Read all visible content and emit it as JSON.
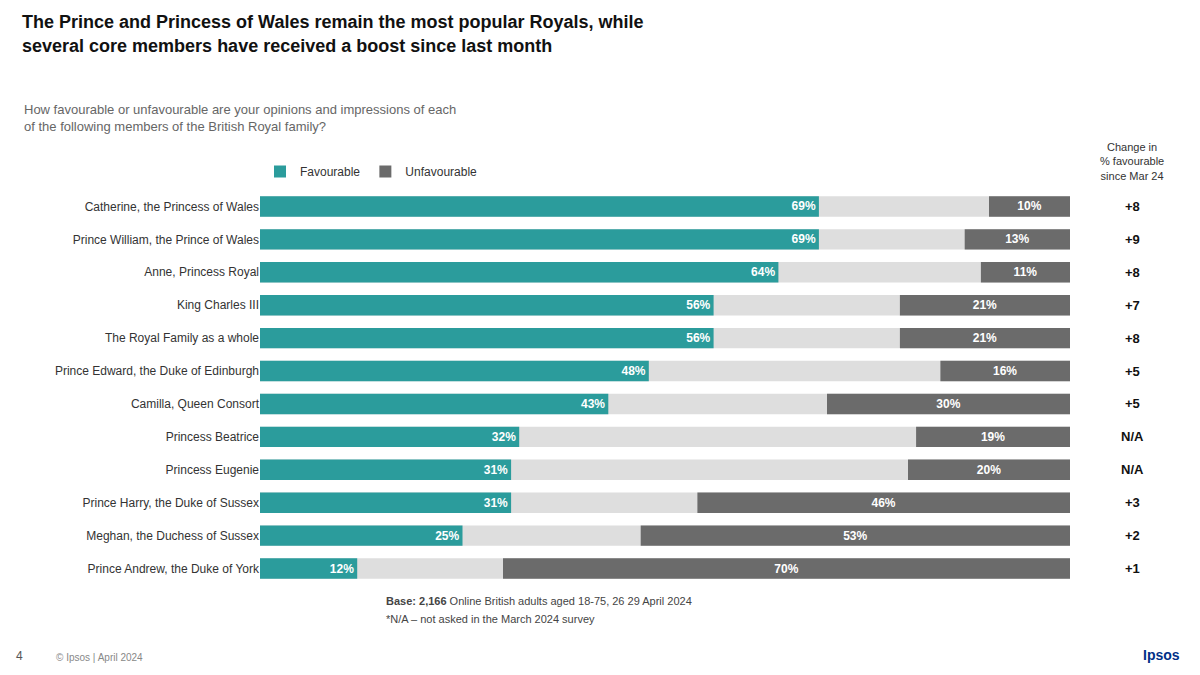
{
  "chart_data": {
    "type": "bar",
    "orientation": "horizontal",
    "title": "The Prince and Princess of Wales remain the most popular Royals, while\nseveral core members have received a boost since last month",
    "subtitle": "How favourable or unfavourable are your opinions and impressions of each\nof the following members of the British Royal family?",
    "categories": [
      "Catherine, the Princess of Wales",
      "Prince William, the Prince of Wales",
      "Anne, Princess Royal",
      "King Charles III",
      "The Royal Family as a whole",
      "Prince Edward, the Duke of Edinburgh",
      "Camilla, Queen Consort",
      "Princess Beatrice",
      "Princess Eugenie",
      "Prince Harry, the Duke of Sussex",
      "Meghan, the Duchess of Sussex",
      "Prince Andrew, the Duke of York"
    ],
    "series": [
      {
        "name": "Favourable",
        "color": "#2B9C9C",
        "values": [
          69,
          69,
          64,
          56,
          56,
          48,
          43,
          32,
          31,
          31,
          25,
          12
        ],
        "value_labels": [
          "69%",
          "69%",
          "64%",
          "56%",
          "56%",
          "48%",
          "43%",
          "32%",
          "31%",
          "31%",
          "25%",
          "12%"
        ]
      },
      {
        "name": "Unfavourable",
        "color": "#6B6B6B",
        "values": [
          10,
          13,
          11,
          21,
          21,
          16,
          30,
          19,
          20,
          46,
          53,
          70
        ],
        "value_labels": [
          "10%",
          "13%",
          "11%",
          "21%",
          "21%",
          "16%",
          "30%",
          "19%",
          "20%",
          "46%",
          "53%",
          "70%"
        ]
      }
    ],
    "change_column": {
      "header": "Change in\n% favourable\nsince Mar 24",
      "values": [
        "+8",
        "+9",
        "+8",
        "+7",
        "+8",
        "+5",
        "+5",
        "N/A",
        "N/A",
        "+3",
        "+2",
        "+1"
      ]
    },
    "notes": [
      {
        "bold": "Base: 2,166",
        "rest": " Online British adults aged 18-75, 26 29 April 2024"
      },
      {
        "bold": "",
        "rest": "*N/A – not asked in the March 2024 survey"
      }
    ],
    "footer": [
      "4",
      "© Ipsos | April 2024",
      "Ipsos"
    ],
    "xlim": [
      0,
      100
    ],
    "xticks": [],
    "tick_labels": "y",
    "data_labels": true,
    "grid": false,
    "legend": "top"
  }
}
